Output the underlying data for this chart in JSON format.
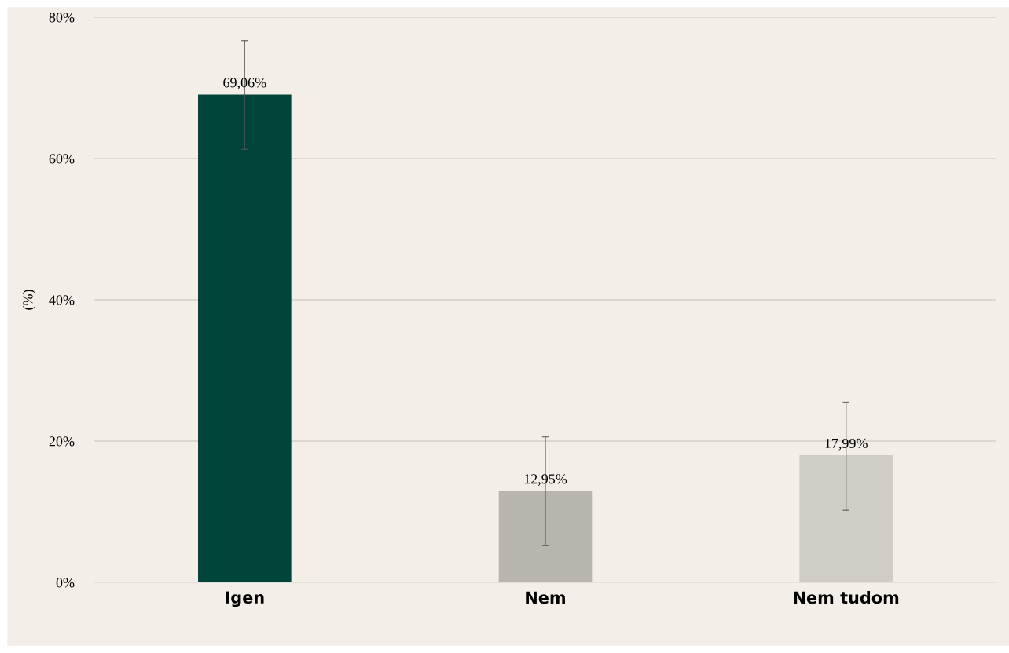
{
  "chart_data": {
    "type": "bar",
    "ylabel": "(%)",
    "categories": [
      "Igen",
      "Nem",
      "Nem tudom"
    ],
    "values": [
      69.06,
      12.95,
      17.99
    ],
    "colors": [
      "#01453a",
      "#b7b5ae",
      "#d0cdc6"
    ],
    "errors": [
      [
        61.3,
        76.7
      ],
      [
        5.2,
        20.6
      ],
      [
        10.2,
        25.5
      ]
    ],
    "value_labels": [
      "69,06%",
      "12,95%",
      "17,99%"
    ],
    "ylim": [
      0,
      80
    ],
    "yticks": [
      {
        "value": 0,
        "label": "0%"
      },
      {
        "value": 20,
        "label": "20%"
      },
      {
        "value": 40,
        "label": "40%"
      },
      {
        "value": 60,
        "label": "60%"
      },
      {
        "value": 80,
        "label": "80%"
      }
    ],
    "grid": "y",
    "legend": false
  }
}
